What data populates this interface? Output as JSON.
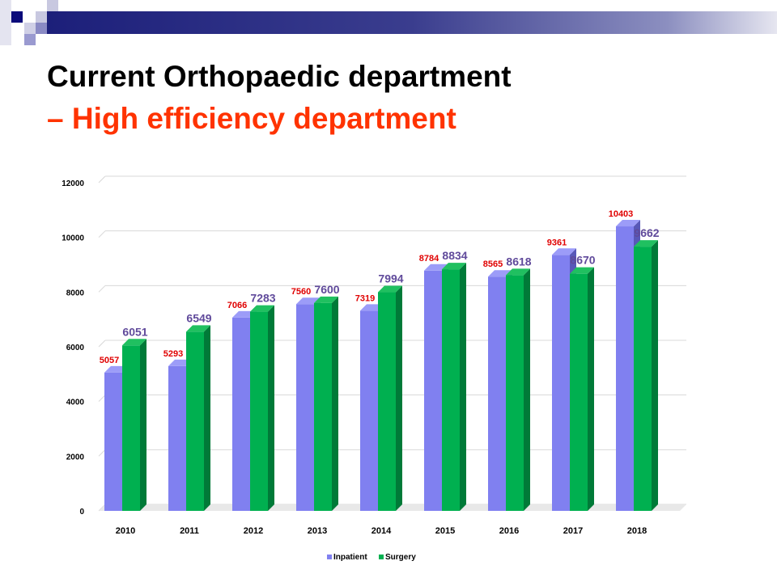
{
  "title": {
    "line1": "Current Orthopaedic department",
    "line2": "– High efficiency department"
  },
  "colors": {
    "inpatient": "#8080f0",
    "surgery": "#00b050",
    "inpatient_label": "#e00000",
    "surgery_label": "#604a9b",
    "title_accent": "#ff3300"
  },
  "chart_data": {
    "type": "bar",
    "categories": [
      "2010",
      "2011",
      "2012",
      "2013",
      "2014",
      "2015",
      "2016",
      "2017",
      "2018"
    ],
    "series": [
      {
        "name": "Inpatient",
        "values": [
          5057,
          5293,
          7066,
          7560,
          7319,
          8784,
          8565,
          9361,
          10403
        ]
      },
      {
        "name": "Surgery",
        "values": [
          6051,
          6549,
          7283,
          7600,
          7994,
          8834,
          8618,
          8670,
          9662
        ]
      }
    ],
    "ylim": [
      0,
      12000
    ],
    "yticks": [
      0,
      2000,
      4000,
      6000,
      8000,
      10000,
      12000
    ],
    "grid": true,
    "legend": "bottom"
  }
}
